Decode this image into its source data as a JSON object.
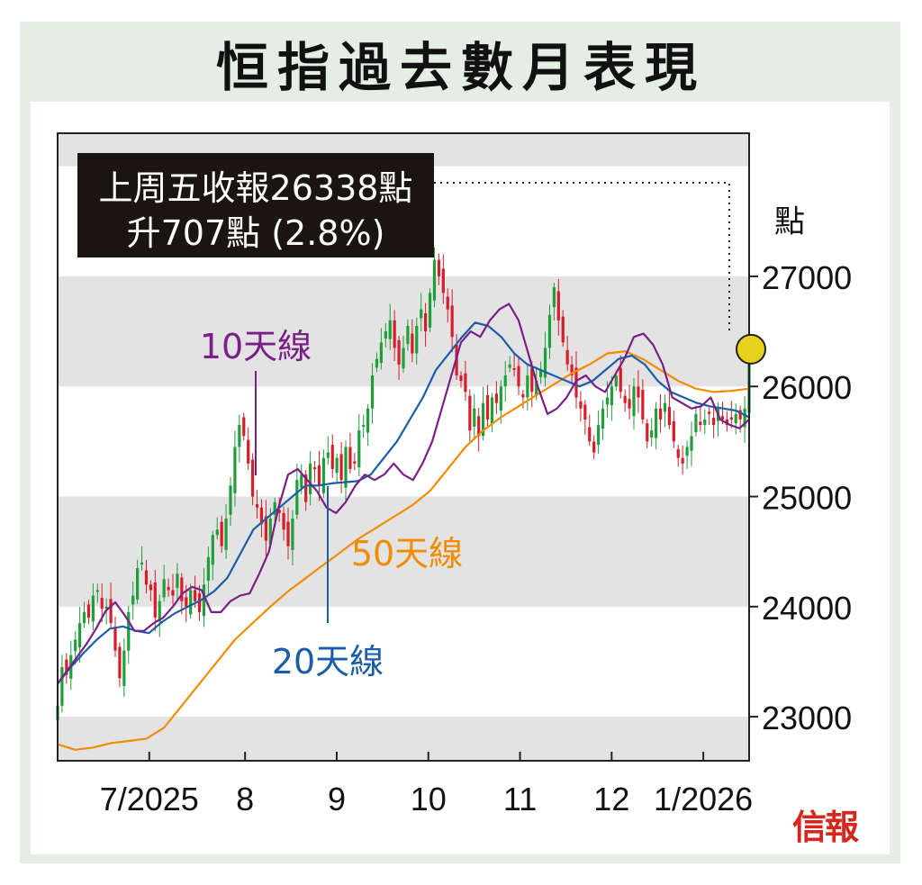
{
  "title": "恒指過去數月表現",
  "brand": "信報",
  "colors": {
    "up": "#1f9e3a",
    "down": "#d81c2a",
    "ma10": "#7a1f86",
    "ma20": "#1a5ea8",
    "ma50": "#f08c00",
    "band": "#e3e3e3",
    "annotation_bg": "#1a1412",
    "marker": "#e6d21a"
  },
  "chart_data": {
    "type": "candlestick",
    "y_unit_label": "點",
    "ylim": [
      22600,
      28300
    ],
    "yticks": [
      23000,
      24000,
      25000,
      26000,
      27000
    ],
    "xlim": [
      0,
      166
    ],
    "xticks": [
      {
        "x": 22,
        "label": "7/2025"
      },
      {
        "x": 45,
        "label": "8"
      },
      {
        "x": 67,
        "label": "9"
      },
      {
        "x": 89,
        "label": "10"
      },
      {
        "x": 111,
        "label": "11"
      },
      {
        "x": 133,
        "label": "12"
      },
      {
        "x": 155,
        "label": "1/2026"
      }
    ],
    "annotation": {
      "line1": "上周五收報26338點",
      "line2": "升707點 (2.8%)",
      "level": 26338
    },
    "series_labels": [
      {
        "name": "10天線",
        "color": "#7a1f86"
      },
      {
        "name": "20天線",
        "color": "#1a5ea8"
      },
      {
        "name": "50天線",
        "color": "#f08c00"
      }
    ],
    "close": [
      23100,
      23450,
      23380,
      23560,
      23700,
      23850,
      23950,
      23900,
      24100,
      24150,
      23980,
      24000,
      23850,
      23600,
      23350,
      23600,
      23950,
      24100,
      24350,
      24400,
      24200,
      24150,
      23900,
      24050,
      24250,
      24150,
      24100,
      24300,
      24050,
      24000,
      24150,
      24050,
      23950,
      24200,
      24450,
      24650,
      24700,
      24550,
      24800,
      25100,
      25450,
      25650,
      25550,
      25300,
      25000,
      24900,
      24750,
      24600,
      24800,
      24950,
      24850,
      24700,
      24550,
      24800,
      25150,
      25200,
      24950,
      25300,
      25250,
      25100,
      25350,
      25400,
      25250,
      25350,
      25150,
      25450,
      25250,
      25300,
      25600,
      25650,
      25800,
      26100,
      26250,
      26400,
      26500,
      26600,
      26350,
      26200,
      26350,
      26550,
      26300,
      26550,
      26700,
      26500,
      26850,
      27150,
      27000,
      26850,
      26700,
      26450,
      26100,
      26050,
      25950,
      25600,
      25800,
      25550,
      25850,
      25700,
      25900,
      25850,
      26000,
      26100,
      26200,
      26150,
      26000,
      25900,
      26100,
      25950,
      26050,
      26150,
      26350,
      26650,
      26900,
      26600,
      26400,
      26200,
      26100,
      25900,
      25800,
      25700,
      25500,
      25400,
      25650,
      25800,
      25900,
      26000,
      26100,
      25950,
      25850,
      25800,
      26000,
      25900,
      25700,
      25500,
      25600,
      25800,
      25700,
      25850,
      25650,
      25500,
      25350,
      25300,
      25450,
      25550,
      25750,
      25650,
      25700,
      25750,
      25650,
      25800,
      25700,
      25650,
      25700,
      25750,
      25700,
      25800,
      26338
    ],
    "ma10": [
      23300,
      23420,
      23540,
      23660,
      23800,
      23960,
      24040,
      23920,
      23780,
      23780,
      23850,
      23900,
      24000,
      24120,
      24180,
      24150,
      23950,
      23950,
      24050,
      24100,
      24120,
      24300,
      24500,
      24900,
      25200,
      25250,
      25150,
      25050,
      24900,
      24850,
      24950,
      25100,
      25200,
      25150,
      25200,
      25300,
      25200,
      25150,
      25300,
      25500,
      25800,
      26100,
      26400,
      26500,
      26450,
      26600,
      26700,
      26750,
      26600,
      26300,
      26000,
      25750,
      25800,
      25900,
      26050,
      26100,
      26000,
      25950,
      26100,
      26250,
      26450,
      26480,
      26380,
      26200,
      25900,
      25850,
      25800,
      25820,
      25900,
      25700,
      25650,
      25620,
      25700
    ],
    "ma20": [
      23300,
      23450,
      23580,
      23700,
      23800,
      23820,
      23780,
      23760,
      23860,
      23940,
      24000,
      24060,
      24140,
      24260,
      24480,
      24700,
      24800,
      24900,
      25000,
      25100,
      25100,
      25120,
      25130,
      25140,
      25200,
      25350,
      25500,
      25700,
      25900,
      26150,
      26300,
      26450,
      26580,
      26550,
      26450,
      26300,
      26200,
      26150,
      26100,
      26050,
      26000,
      26050,
      26150,
      26250,
      26280,
      26200,
      26050,
      25950,
      25900,
      25850,
      25820,
      25800,
      25780,
      25720
    ],
    "ma50": [
      22750,
      22700,
      22720,
      22760,
      22780,
      22800,
      22900,
      23100,
      23300,
      23500,
      23700,
      23850,
      24000,
      24140,
      24260,
      24380,
      24500,
      24620,
      24720,
      24820,
      24920,
      25050,
      25250,
      25450,
      25600,
      25720,
      25820,
      25920,
      26020,
      26120,
      26200,
      26300,
      26320,
      26250,
      26150,
      26050,
      25980,
      25950,
      25960,
      25980
    ]
  }
}
